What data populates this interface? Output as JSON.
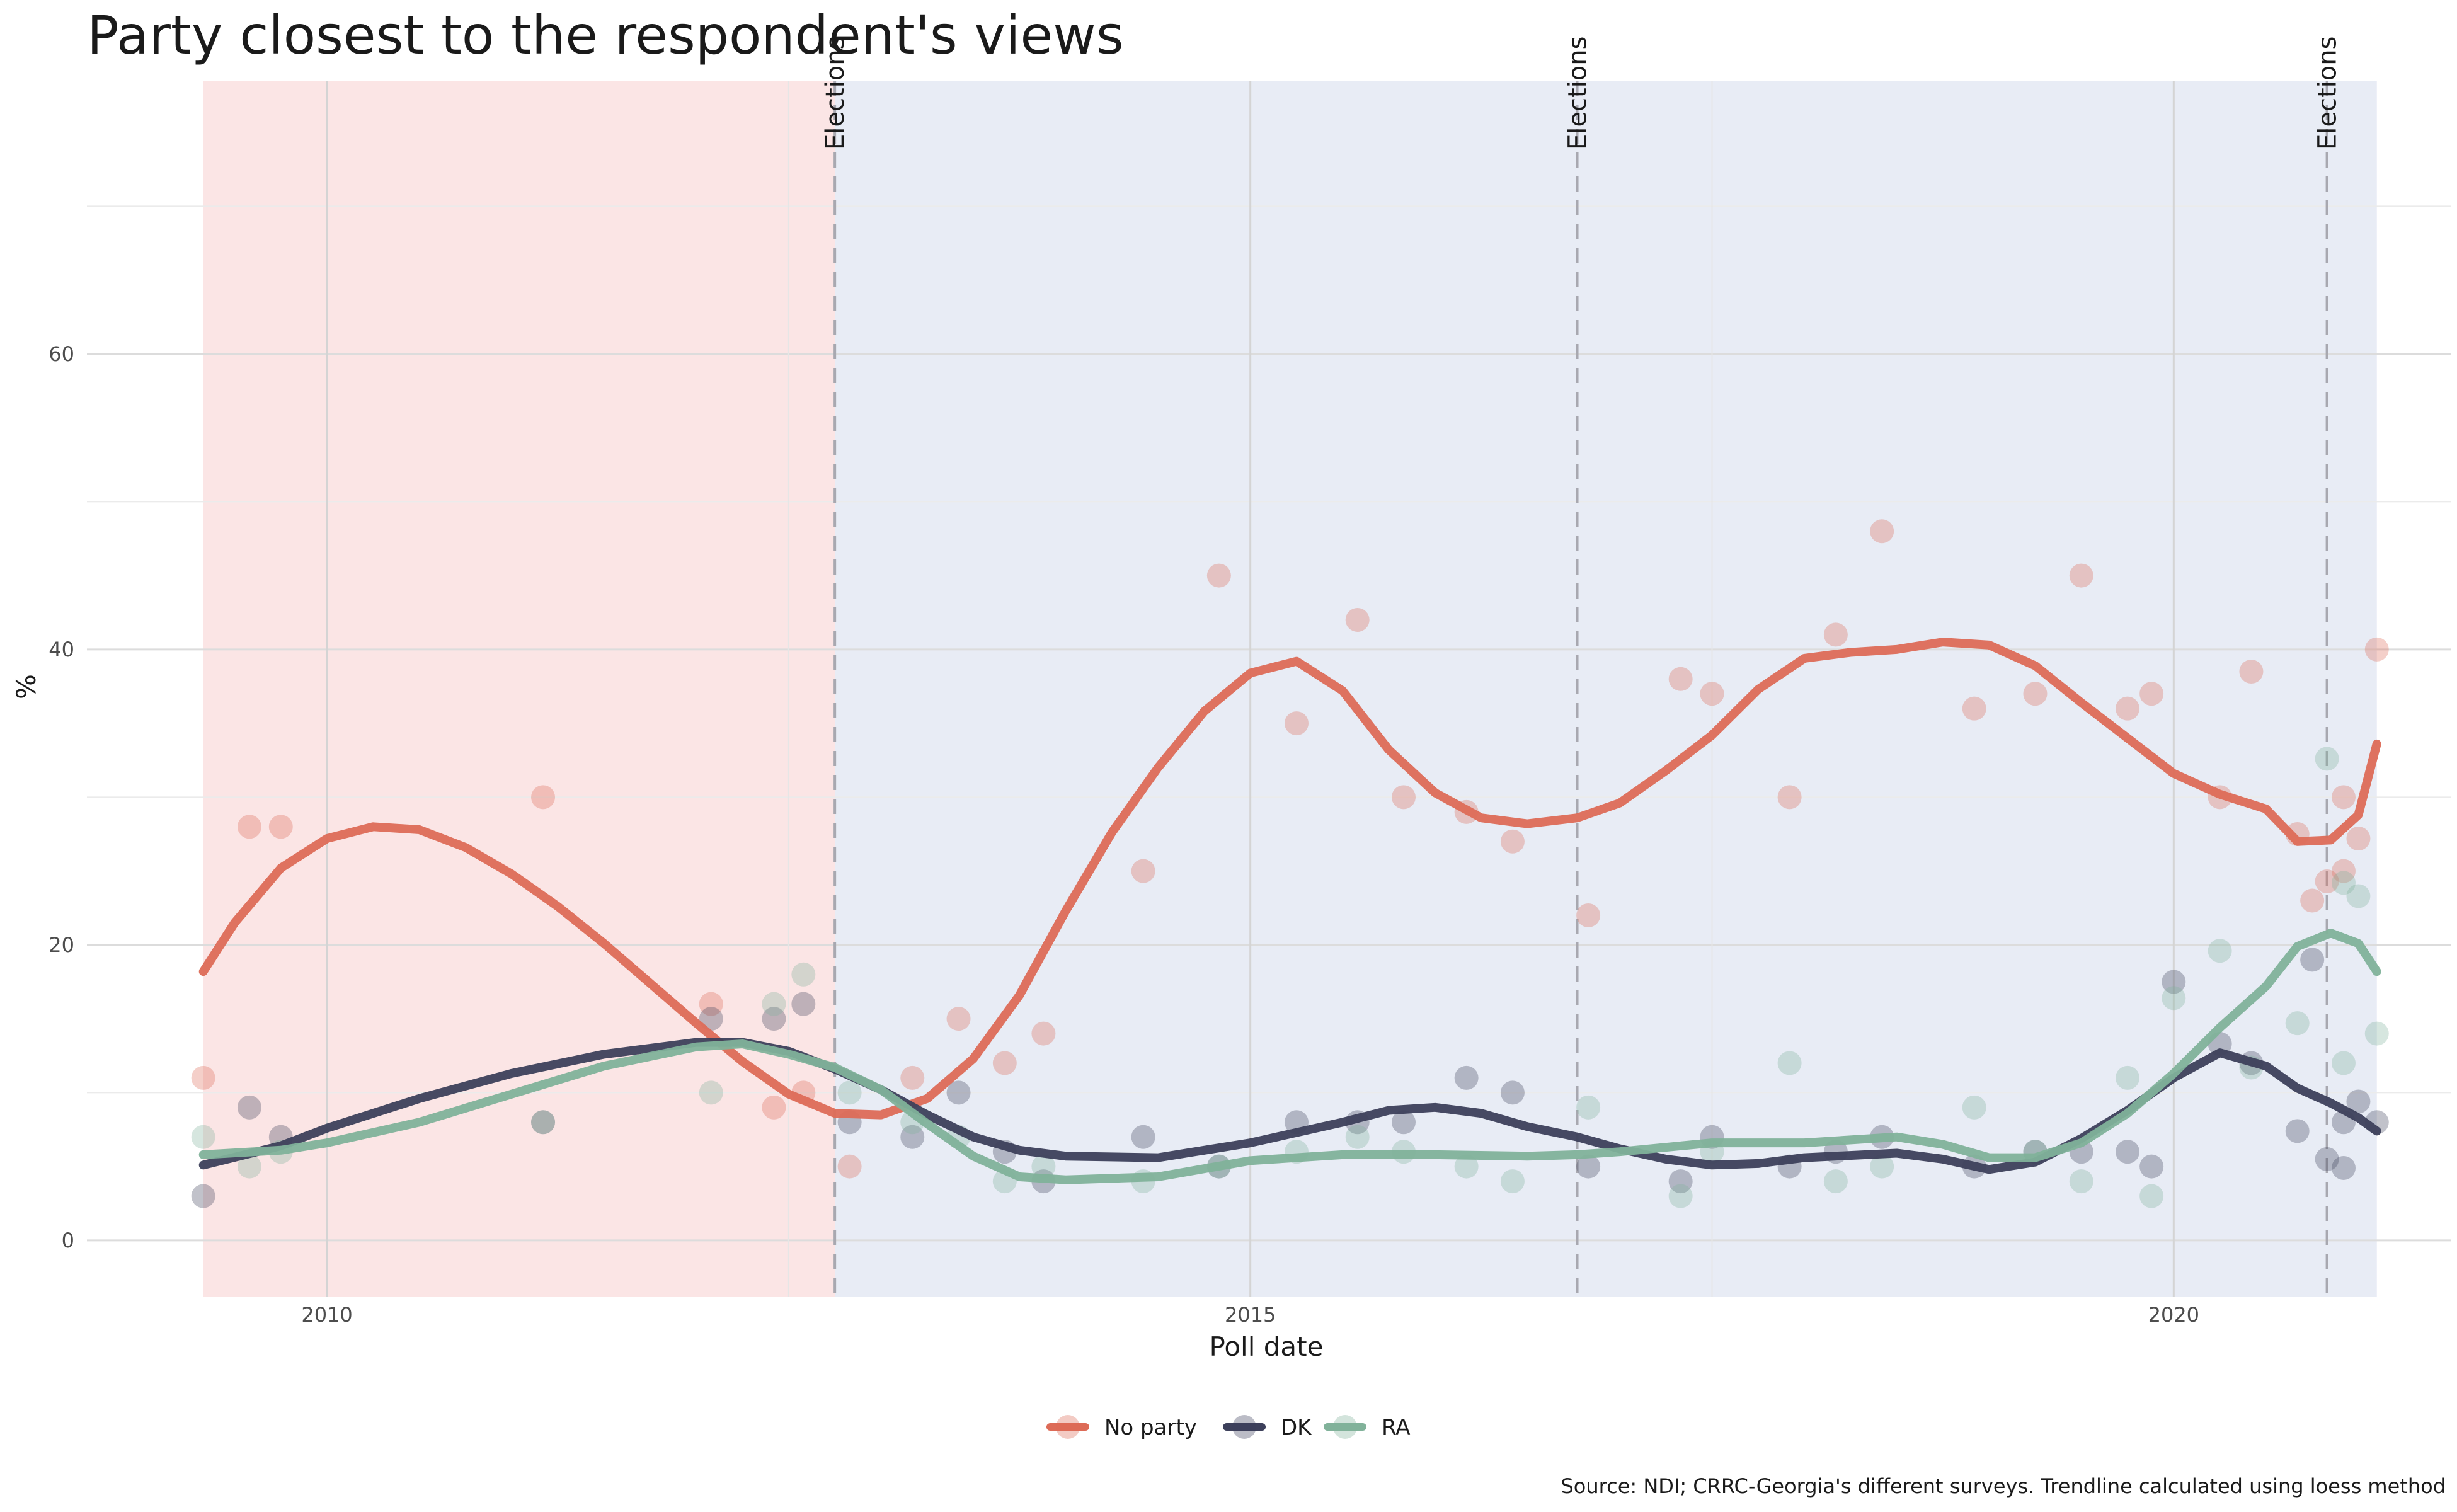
{
  "chart_data": {
    "type": "scatter",
    "title": "Party closest to the respondent's views",
    "xlabel": "Poll date",
    "ylabel": "%",
    "caption": "Source: NDI; CRRC-Georgia's different surveys. Trendline calculated using loess method",
    "x_ticks": [
      2010,
      2015,
      2020
    ],
    "y_ticks": [
      0,
      20,
      40,
      60
    ],
    "xlim": [
      2008.7,
      2021.5
    ],
    "ylim": [
      -3.8,
      78.5
    ],
    "grid": true,
    "legend_position": "bottom",
    "periods": [
      {
        "start": 2009.33,
        "end": 2012.75,
        "color": "#fbe5e5"
      },
      {
        "start": 2012.75,
        "end": 2021.1,
        "color": "#e8ecf5"
      }
    ],
    "elections": [
      {
        "x": 2012.75,
        "label": "Elections"
      },
      {
        "x": 2016.77,
        "label": "Elections"
      },
      {
        "x": 2020.83,
        "label": "Elections"
      }
    ],
    "series": [
      {
        "name": "No party",
        "color": "#dd6b57",
        "points": [
          [
            2009.33,
            11
          ],
          [
            2009.58,
            28
          ],
          [
            2009.75,
            28
          ],
          [
            2011.17,
            30
          ],
          [
            2012.08,
            16
          ],
          [
            2012.42,
            9
          ],
          [
            2012.58,
            10
          ],
          [
            2012.83,
            5
          ],
          [
            2013.17,
            11
          ],
          [
            2013.42,
            15
          ],
          [
            2013.67,
            12
          ],
          [
            2013.88,
            14
          ],
          [
            2014.42,
            25
          ],
          [
            2014.83,
            45
          ],
          [
            2015.25,
            35
          ],
          [
            2015.58,
            42
          ],
          [
            2015.83,
            30
          ],
          [
            2016.17,
            29
          ],
          [
            2016.42,
            27
          ],
          [
            2016.83,
            22
          ],
          [
            2017.33,
            38
          ],
          [
            2017.5,
            37
          ],
          [
            2017.92,
            30
          ],
          [
            2018.17,
            41
          ],
          [
            2018.42,
            48
          ],
          [
            2018.92,
            36
          ],
          [
            2019.25,
            37
          ],
          [
            2019.5,
            45
          ],
          [
            2019.75,
            36
          ],
          [
            2019.88,
            37
          ],
          [
            2020.25,
            30
          ],
          [
            2020.42,
            38.5
          ],
          [
            2020.67,
            27.5
          ],
          [
            2020.75,
            23
          ],
          [
            2020.83,
            24.3
          ],
          [
            2020.92,
            25
          ],
          [
            2020.92,
            30
          ],
          [
            2021.0,
            27.2
          ],
          [
            2021.1,
            40
          ]
        ],
        "trend": [
          [
            2009.33,
            18.2
          ],
          [
            2009.5,
            21.5
          ],
          [
            2009.75,
            25.2
          ],
          [
            2010.0,
            27.2
          ],
          [
            2010.25,
            28.0
          ],
          [
            2010.5,
            27.8
          ],
          [
            2010.75,
            26.6
          ],
          [
            2011.0,
            24.8
          ],
          [
            2011.25,
            22.6
          ],
          [
            2011.5,
            20.1
          ],
          [
            2011.75,
            17.4
          ],
          [
            2012.0,
            14.7
          ],
          [
            2012.25,
            12.1
          ],
          [
            2012.5,
            9.9
          ],
          [
            2012.75,
            8.6
          ],
          [
            2013.0,
            8.5
          ],
          [
            2013.25,
            9.6
          ],
          [
            2013.5,
            12.3
          ],
          [
            2013.75,
            16.6
          ],
          [
            2014.0,
            22.3
          ],
          [
            2014.25,
            27.6
          ],
          [
            2014.5,
            32.0
          ],
          [
            2014.75,
            35.8
          ],
          [
            2015.0,
            38.4
          ],
          [
            2015.25,
            39.2
          ],
          [
            2015.5,
            37.2
          ],
          [
            2015.75,
            33.2
          ],
          [
            2016.0,
            30.3
          ],
          [
            2016.25,
            28.6
          ],
          [
            2016.5,
            28.2
          ],
          [
            2016.77,
            28.6
          ],
          [
            2017.0,
            29.6
          ],
          [
            2017.25,
            31.8
          ],
          [
            2017.5,
            34.2
          ],
          [
            2017.75,
            37.3
          ],
          [
            2018.0,
            39.4
          ],
          [
            2018.25,
            39.8
          ],
          [
            2018.5,
            40.0
          ],
          [
            2018.75,
            40.5
          ],
          [
            2019.0,
            40.3
          ],
          [
            2019.25,
            38.9
          ],
          [
            2019.5,
            36.4
          ],
          [
            2019.75,
            34.0
          ],
          [
            2020.0,
            31.6
          ],
          [
            2020.25,
            30.2
          ],
          [
            2020.5,
            29.2
          ],
          [
            2020.67,
            27.0
          ],
          [
            2020.85,
            27.1
          ],
          [
            2021.0,
            28.8
          ],
          [
            2021.1,
            33.6
          ]
        ]
      },
      {
        "name": "DK",
        "color": "#3d405b",
        "points": [
          [
            2009.33,
            3
          ],
          [
            2009.58,
            9
          ],
          [
            2009.75,
            7
          ],
          [
            2011.17,
            8
          ],
          [
            2012.08,
            15
          ],
          [
            2012.42,
            15
          ],
          [
            2012.58,
            16
          ],
          [
            2012.83,
            8
          ],
          [
            2013.17,
            7
          ],
          [
            2013.42,
            10
          ],
          [
            2013.67,
            6
          ],
          [
            2013.88,
            4
          ],
          [
            2014.42,
            7
          ],
          [
            2014.83,
            5
          ],
          [
            2015.25,
            8
          ],
          [
            2015.58,
            8
          ],
          [
            2015.83,
            8
          ],
          [
            2016.17,
            11
          ],
          [
            2016.42,
            10
          ],
          [
            2016.83,
            5
          ],
          [
            2017.33,
            4
          ],
          [
            2017.5,
            7
          ],
          [
            2017.92,
            5
          ],
          [
            2018.17,
            6
          ],
          [
            2018.42,
            7
          ],
          [
            2018.92,
            5
          ],
          [
            2019.25,
            6
          ],
          [
            2019.5,
            6
          ],
          [
            2019.75,
            6
          ],
          [
            2019.88,
            5
          ],
          [
            2020.0,
            17.5
          ],
          [
            2020.25,
            13.3
          ],
          [
            2020.42,
            12
          ],
          [
            2020.67,
            7.4
          ],
          [
            2020.75,
            19
          ],
          [
            2020.83,
            5.5
          ],
          [
            2020.92,
            4.9
          ],
          [
            2020.92,
            8
          ],
          [
            2021.0,
            9.4
          ],
          [
            2021.1,
            8
          ]
        ],
        "trend": [
          [
            2009.33,
            5.1
          ],
          [
            2009.75,
            6.4
          ],
          [
            2010.0,
            7.6
          ],
          [
            2010.5,
            9.6
          ],
          [
            2011.0,
            11.3
          ],
          [
            2011.5,
            12.6
          ],
          [
            2012.0,
            13.4
          ],
          [
            2012.25,
            13.4
          ],
          [
            2012.5,
            12.8
          ],
          [
            2012.75,
            11.6
          ],
          [
            2013.0,
            10.2
          ],
          [
            2013.25,
            8.5
          ],
          [
            2013.5,
            7.0
          ],
          [
            2013.75,
            6.1
          ],
          [
            2014.0,
            5.7
          ],
          [
            2014.5,
            5.6
          ],
          [
            2015.0,
            6.6
          ],
          [
            2015.5,
            8.0
          ],
          [
            2015.75,
            8.8
          ],
          [
            2016.0,
            9.0
          ],
          [
            2016.25,
            8.6
          ],
          [
            2016.5,
            7.7
          ],
          [
            2016.77,
            7.0
          ],
          [
            2017.0,
            6.2
          ],
          [
            2017.25,
            5.5
          ],
          [
            2017.5,
            5.1
          ],
          [
            2017.75,
            5.2
          ],
          [
            2018.0,
            5.6
          ],
          [
            2018.5,
            5.9
          ],
          [
            2018.75,
            5.5
          ],
          [
            2019.0,
            4.8
          ],
          [
            2019.25,
            5.3
          ],
          [
            2019.5,
            6.9
          ],
          [
            2019.75,
            8.8
          ],
          [
            2020.0,
            11.0
          ],
          [
            2020.25,
            12.7
          ],
          [
            2020.5,
            11.8
          ],
          [
            2020.67,
            10.3
          ],
          [
            2020.85,
            9.3
          ],
          [
            2021.0,
            8.3
          ],
          [
            2021.1,
            7.4
          ]
        ]
      },
      {
        "name": "RA",
        "color": "#81b29a",
        "points": [
          [
            2009.33,
            7
          ],
          [
            2009.58,
            5
          ],
          [
            2009.75,
            6
          ],
          [
            2011.17,
            8
          ],
          [
            2012.08,
            10
          ],
          [
            2012.42,
            16
          ],
          [
            2012.58,
            18
          ],
          [
            2012.83,
            10
          ],
          [
            2013.17,
            8
          ],
          [
            2013.42,
            7
          ],
          [
            2013.67,
            4
          ],
          [
            2013.88,
            5
          ],
          [
            2014.42,
            4
          ],
          [
            2014.83,
            5
          ],
          [
            2015.25,
            6
          ],
          [
            2015.58,
            7
          ],
          [
            2015.83,
            6
          ],
          [
            2016.17,
            5
          ],
          [
            2016.42,
            4
          ],
          [
            2016.83,
            9
          ],
          [
            2017.33,
            3
          ],
          [
            2017.5,
            6
          ],
          [
            2017.92,
            12
          ],
          [
            2018.17,
            4
          ],
          [
            2018.42,
            5
          ],
          [
            2018.92,
            9
          ],
          [
            2019.25,
            6
          ],
          [
            2019.5,
            4
          ],
          [
            2019.75,
            11
          ],
          [
            2019.88,
            3
          ],
          [
            2020.0,
            16.4
          ],
          [
            2020.25,
            19.6
          ],
          [
            2020.42,
            11.7
          ],
          [
            2020.67,
            14.7
          ],
          [
            2020.83,
            32.6
          ],
          [
            2020.92,
            12
          ],
          [
            2020.92,
            24.2
          ],
          [
            2021.0,
            23.3
          ],
          [
            2021.1,
            14
          ]
        ],
        "trend": [
          [
            2009.33,
            5.8
          ],
          [
            2009.75,
            6.1
          ],
          [
            2010.0,
            6.6
          ],
          [
            2010.5,
            8.0
          ],
          [
            2011.0,
            9.9
          ],
          [
            2011.5,
            11.8
          ],
          [
            2012.0,
            13.1
          ],
          [
            2012.25,
            13.3
          ],
          [
            2012.5,
            12.6
          ],
          [
            2012.75,
            11.7
          ],
          [
            2013.0,
            10.2
          ],
          [
            2013.25,
            7.9
          ],
          [
            2013.5,
            5.7
          ],
          [
            2013.75,
            4.3
          ],
          [
            2014.0,
            4.1
          ],
          [
            2014.5,
            4.3
          ],
          [
            2015.0,
            5.4
          ],
          [
            2015.5,
            5.8
          ],
          [
            2016.0,
            5.8
          ],
          [
            2016.5,
            5.7
          ],
          [
            2016.77,
            5.8
          ],
          [
            2017.0,
            6.0
          ],
          [
            2017.5,
            6.6
          ],
          [
            2018.0,
            6.6
          ],
          [
            2018.5,
            7.0
          ],
          [
            2018.75,
            6.5
          ],
          [
            2019.0,
            5.6
          ],
          [
            2019.25,
            5.6
          ],
          [
            2019.5,
            6.6
          ],
          [
            2019.75,
            8.6
          ],
          [
            2020.0,
            11.3
          ],
          [
            2020.25,
            14.4
          ],
          [
            2020.5,
            17.2
          ],
          [
            2020.67,
            19.9
          ],
          [
            2020.85,
            20.8
          ],
          [
            2021.0,
            20.1
          ],
          [
            2021.1,
            18.2
          ]
        ]
      }
    ]
  }
}
